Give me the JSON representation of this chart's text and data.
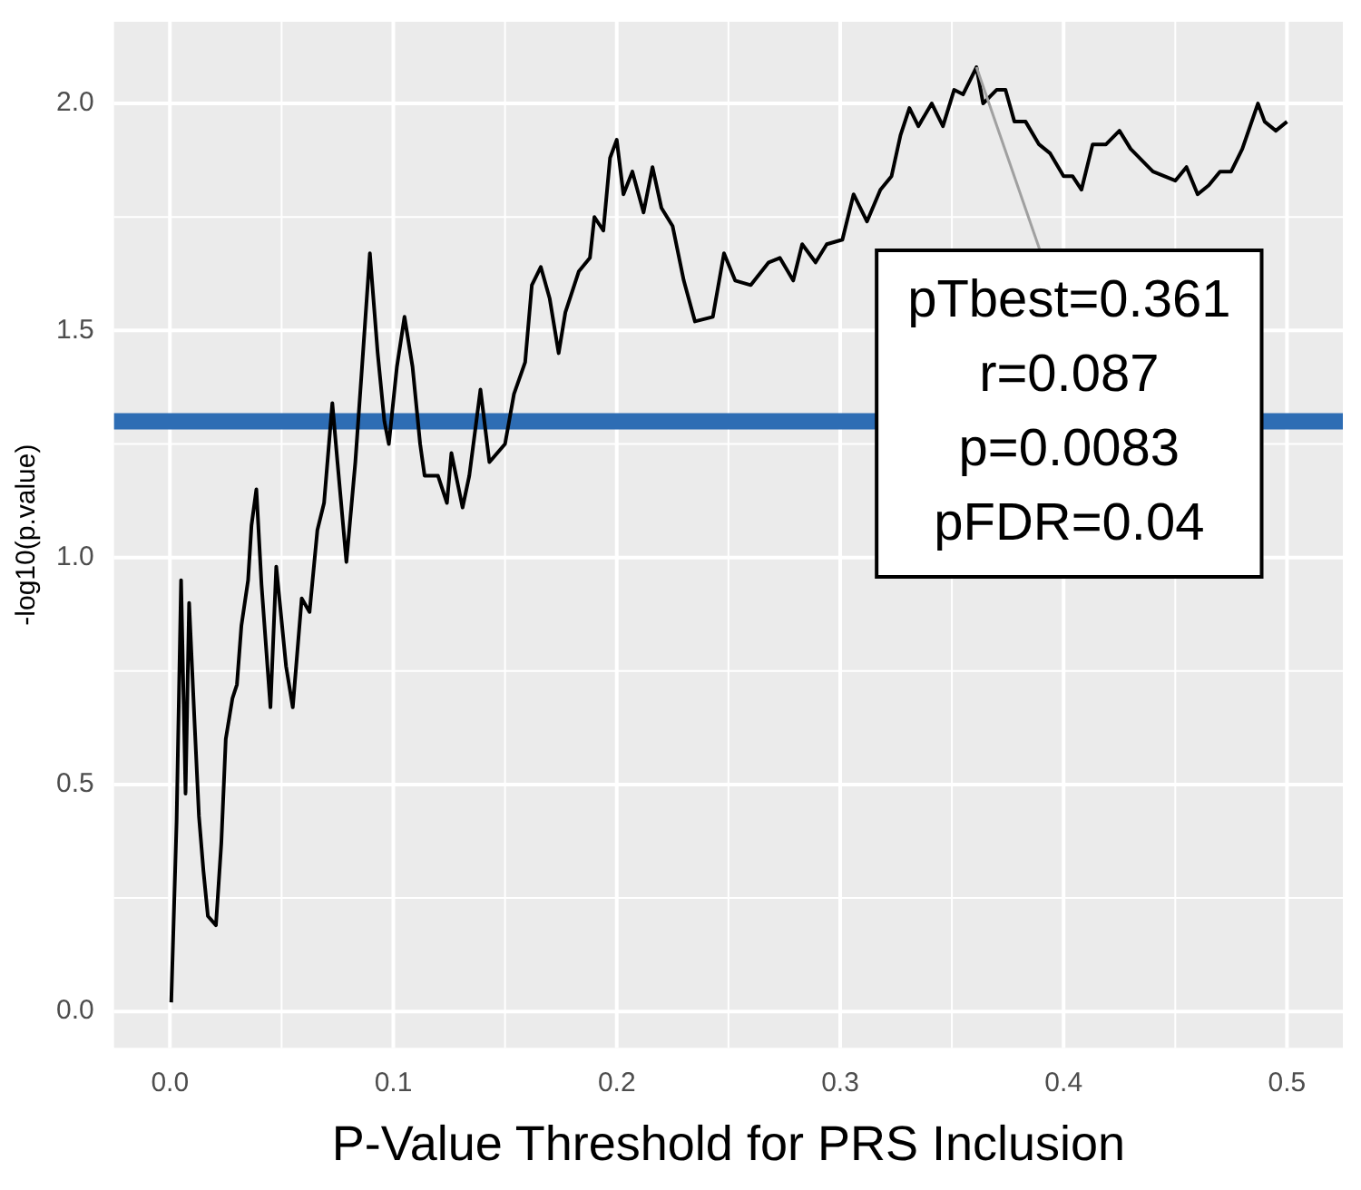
{
  "chart_data": {
    "type": "line",
    "xlabel": "P-Value Threshold for PRS Inclusion",
    "ylabel": "-log10(p.value)",
    "xlim": [
      -0.025,
      0.525
    ],
    "xticks": [
      {
        "value": 0,
        "label": "0.0"
      },
      0.1,
      0.2,
      0.3,
      0.4,
      0.5
    ],
    "ylim": [
      -0.08,
      2.18
    ],
    "yticks": [
      {
        "value": 0,
        "label": "0.0"
      },
      0.5,
      {
        "value": 1,
        "label": "1.0"
      },
      1.5,
      {
        "value": 2,
        "label": "2.0"
      }
    ],
    "grid": true,
    "legend": false,
    "marker": "none",
    "line_style": "solid",
    "series": [
      {
        "color": "#000000",
        "x": [
          0.0006,
          0.003,
          0.005,
          0.007,
          0.0086,
          0.011,
          0.013,
          0.015,
          0.017,
          0.0206,
          0.023,
          0.025,
          0.028,
          0.03,
          0.032,
          0.035,
          0.0365,
          0.0387,
          0.041,
          0.045,
          0.0476,
          0.052,
          0.055,
          0.059,
          0.0625,
          0.066,
          0.069,
          0.0727,
          0.075,
          0.079,
          0.083,
          0.086,
          0.0895,
          0.093,
          0.096,
          0.098,
          0.1016,
          0.105,
          0.1086,
          0.112,
          0.114,
          0.12,
          0.124,
          0.126,
          0.131,
          0.134,
          0.139,
          0.143,
          0.15,
          0.154,
          0.159,
          0.162,
          0.166,
          0.17,
          0.174,
          0.177,
          0.183,
          0.188,
          0.19,
          0.194,
          0.197,
          0.2,
          0.203,
          0.207,
          0.212,
          0.216,
          0.22,
          0.225,
          0.23,
          0.235,
          0.243,
          0.248,
          0.253,
          0.26,
          0.268,
          0.273,
          0.279,
          0.283,
          0.289,
          0.294,
          0.301,
          0.306,
          0.312,
          0.318,
          0.323,
          0.327,
          0.331,
          0.335,
          0.341,
          0.346,
          0.351,
          0.355,
          0.361,
          0.364,
          0.37,
          0.374,
          0.378,
          0.383,
          0.389,
          0.394,
          0.4,
          0.404,
          0.408,
          0.413,
          0.419,
          0.425,
          0.43,
          0.44,
          0.45,
          0.455,
          0.46,
          0.465,
          0.47,
          0.475,
          0.48,
          0.487,
          0.49,
          0.495,
          0.5
        ],
        "values": [
          0.02,
          0.42,
          0.95,
          0.48,
          0.9,
          0.64,
          0.43,
          0.31,
          0.21,
          0.19,
          0.37,
          0.6,
          0.69,
          0.72,
          0.85,
          0.95,
          1.07,
          1.15,
          0.94,
          0.67,
          0.98,
          0.76,
          0.67,
          0.91,
          0.88,
          1.06,
          1.12,
          1.34,
          1.21,
          0.99,
          1.21,
          1.42,
          1.67,
          1.45,
          1.3,
          1.25,
          1.42,
          1.53,
          1.42,
          1.25,
          1.18,
          1.18,
          1.12,
          1.23,
          1.11,
          1.18,
          1.37,
          1.21,
          1.25,
          1.36,
          1.43,
          1.6,
          1.64,
          1.57,
          1.45,
          1.54,
          1.63,
          1.66,
          1.75,
          1.72,
          1.88,
          1.92,
          1.8,
          1.85,
          1.76,
          1.86,
          1.77,
          1.73,
          1.61,
          1.52,
          1.53,
          1.67,
          1.61,
          1.6,
          1.65,
          1.66,
          1.61,
          1.69,
          1.65,
          1.69,
          1.7,
          1.8,
          1.74,
          1.81,
          1.84,
          1.93,
          1.99,
          1.95,
          2.0,
          1.95,
          2.03,
          2.02,
          2.08,
          2.0,
          2.03,
          2.03,
          1.96,
          1.96,
          1.91,
          1.89,
          1.84,
          1.84,
          1.81,
          1.91,
          1.91,
          1.94,
          1.9,
          1.85,
          1.83,
          1.86,
          1.8,
          1.82,
          1.85,
          1.85,
          1.9,
          2.0,
          1.96,
          1.94,
          1.96
        ]
      }
    ],
    "ref_lines": [
      {
        "axis": "y",
        "value": 1.3,
        "color": "#2e6db4"
      }
    ],
    "annotations": [
      {
        "text": "pTbest=0.361\nr=0.087\np=0.0083\npFDR=0.04",
        "x": 0.361,
        "y": 2.08
      }
    ]
  }
}
